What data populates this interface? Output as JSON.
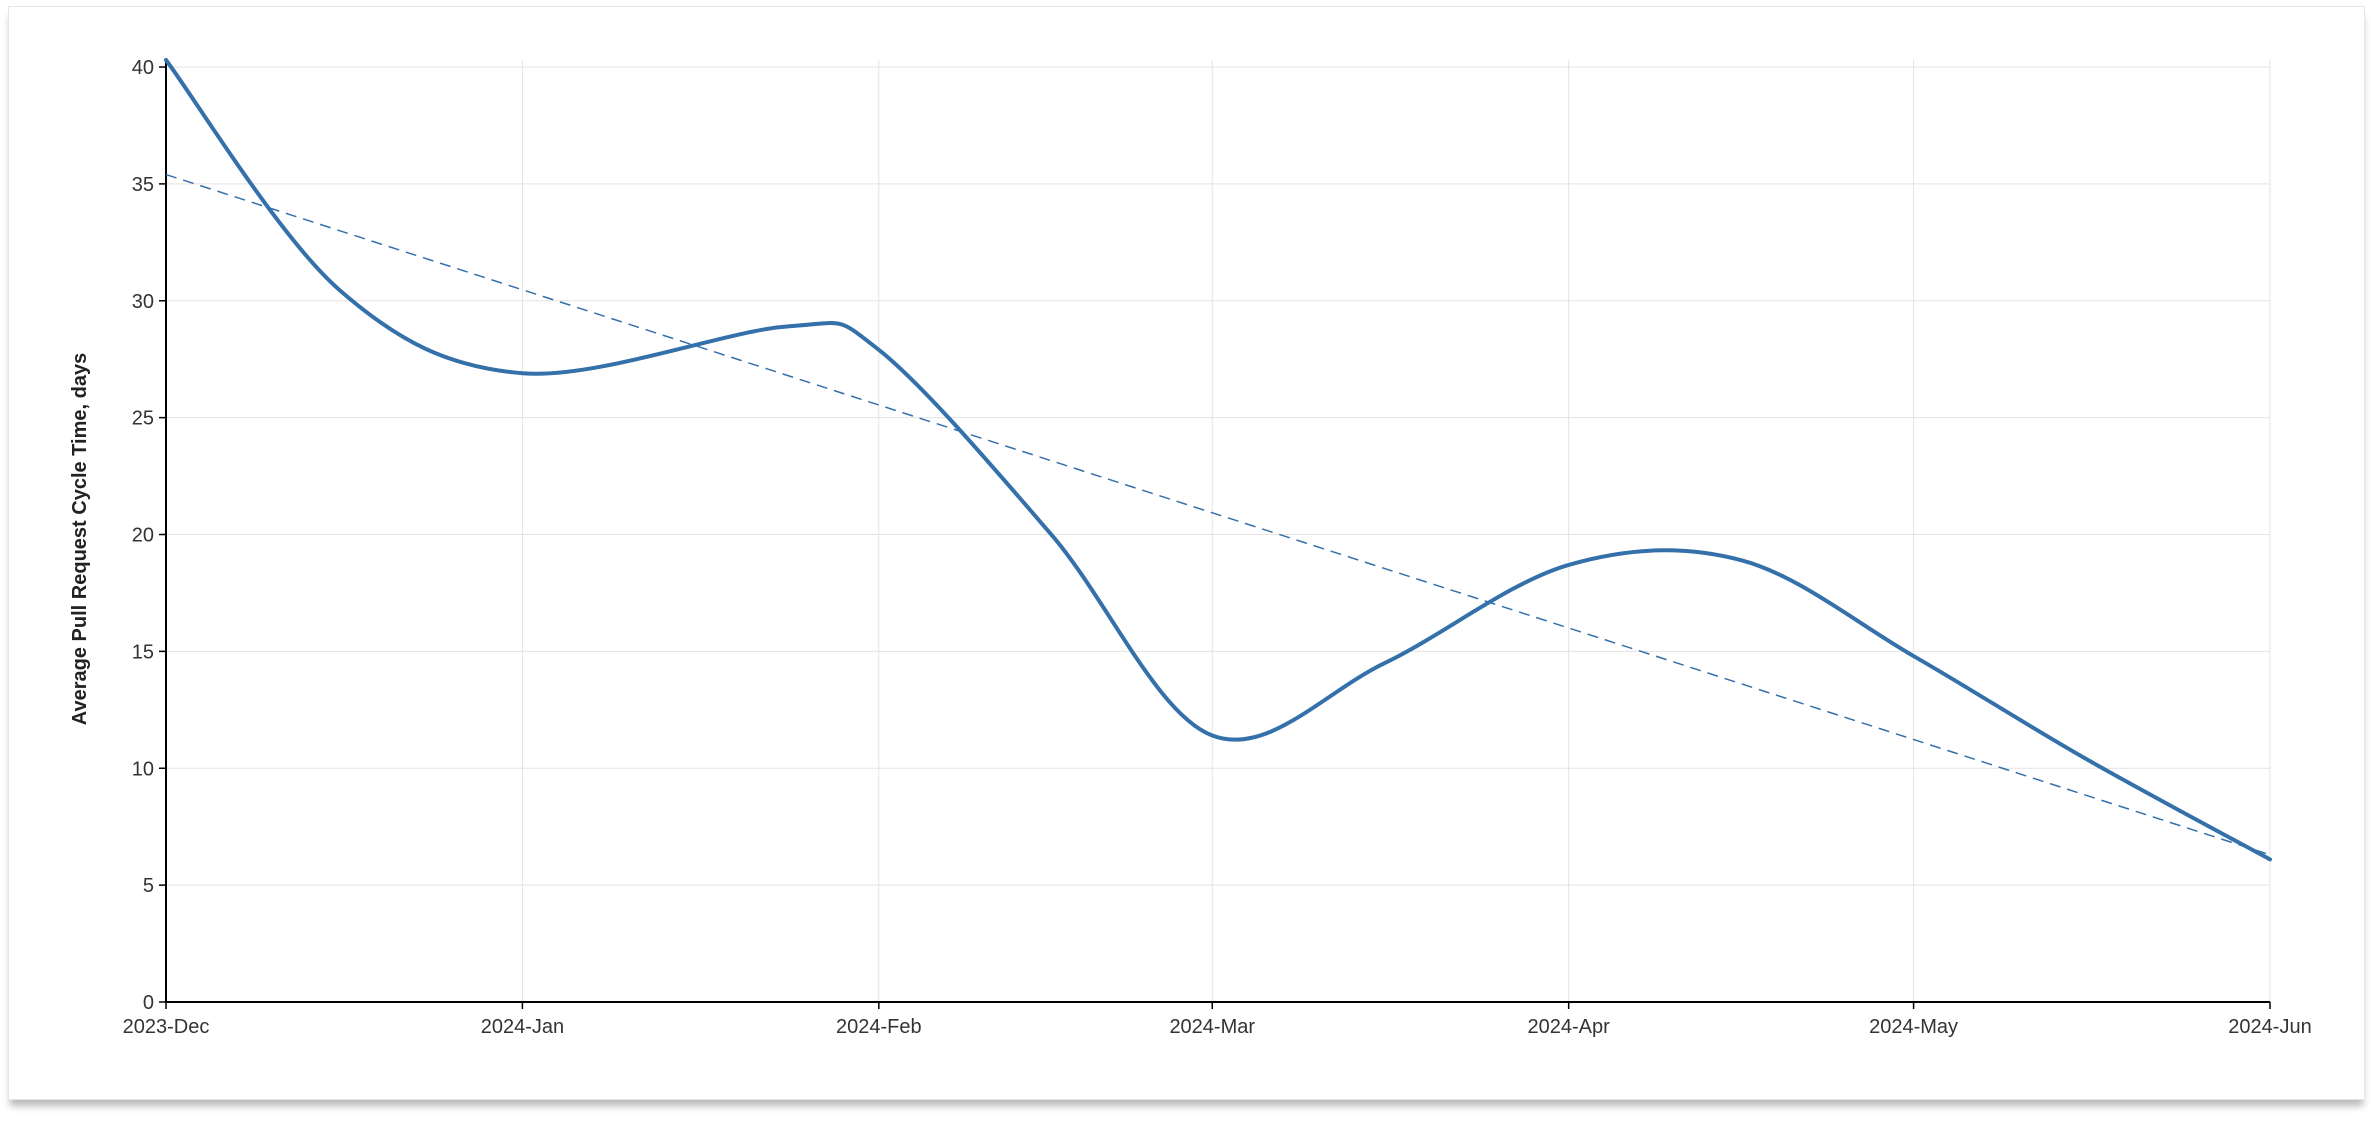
{
  "chart_data": {
    "type": "line",
    "title": "",
    "xlabel": "",
    "ylabel": "Average Pull Request Cycle Time, days",
    "x_ticks": [
      "2023-Dec",
      "2024-Jan",
      "2024-Feb",
      "2024-Mar",
      "2024-Apr",
      "2024-May",
      "2024-Jun"
    ],
    "y_ticks": [
      0,
      5,
      10,
      15,
      20,
      25,
      30,
      35,
      40
    ],
    "ylim": [
      0,
      40.3
    ],
    "grid": true,
    "legend": "none",
    "series": [
      {
        "role": "average",
        "style": "solid",
        "color": "#3470aa",
        "x": [
          "2023-12-01",
          "2023-12-16",
          "2024-01-01",
          "2024-01-24",
          "2024-02-01",
          "2024-02-16",
          "2024-03-01",
          "2024-03-16",
          "2024-04-01",
          "2024-04-16",
          "2024-05-01",
          "2024-05-16",
          "2024-06-01"
        ],
        "y": [
          40.3,
          30.5,
          26.9,
          28.9,
          27.9,
          20.0,
          11.4,
          14.5,
          18.7,
          18.9,
          14.8,
          10.4,
          6.1
        ]
      },
      {
        "role": "trend",
        "style": "dashed",
        "color": "#3470aa",
        "x": [
          "2023-12-01",
          "2024-06-01"
        ],
        "y": [
          35.4,
          6.3
        ]
      }
    ]
  }
}
